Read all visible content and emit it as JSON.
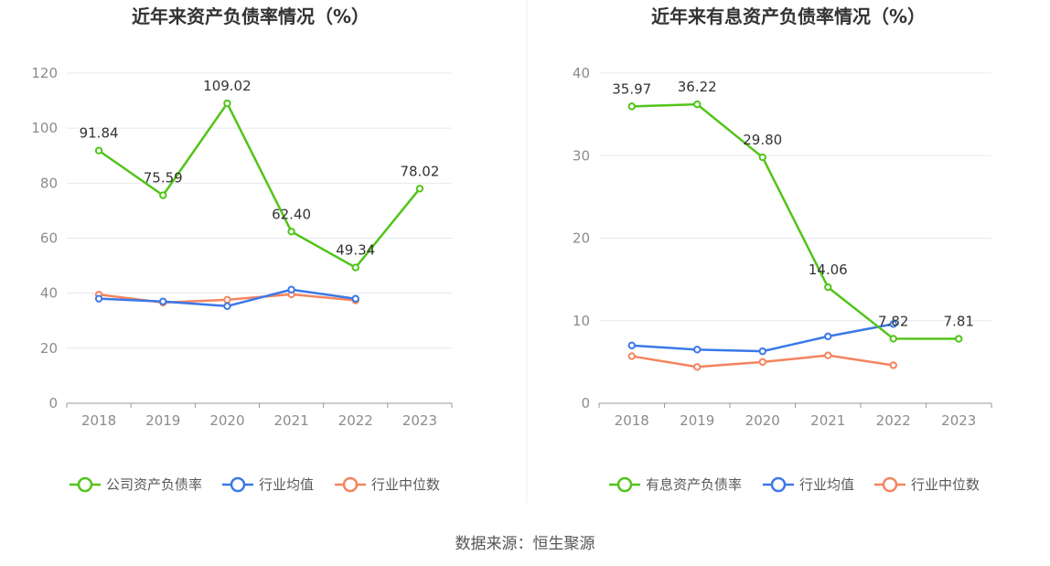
{
  "source_text": "数据来源：恒生聚源",
  "chart_data": [
    {
      "type": "line",
      "title": "近年来资产负债率情况（%）",
      "categories": [
        "2018",
        "2019",
        "2020",
        "2021",
        "2022",
        "2023"
      ],
      "y_ticks": [
        "0",
        "20",
        "40",
        "60",
        "80",
        "100",
        "120"
      ],
      "ylim": [
        0,
        120
      ],
      "grid": true,
      "legend_position": "bottom",
      "series": [
        {
          "name": "公司资产负债率",
          "color": "#52c41a",
          "values": [
            91.84,
            75.59,
            109.02,
            62.4,
            49.34,
            78.02
          ],
          "labels": [
            "91.84",
            "75.59",
            "109.02",
            "62.40",
            "49.34",
            "78.02"
          ]
        },
        {
          "name": "行业均值",
          "color": "#3b78e7",
          "values": [
            38.0,
            37.0,
            35.3,
            41.3,
            38.0,
            null
          ]
        },
        {
          "name": "行业中位数",
          "color": "#f4845f",
          "values": [
            39.5,
            36.6,
            37.6,
            39.6,
            37.4,
            null
          ]
        }
      ]
    },
    {
      "type": "line",
      "title": "近年来有息资产负债率情况（%）",
      "categories": [
        "2018",
        "2019",
        "2020",
        "2021",
        "2022",
        "2023"
      ],
      "y_ticks": [
        "0",
        "10",
        "20",
        "30",
        "40"
      ],
      "ylim": [
        0,
        40
      ],
      "grid": true,
      "legend_position": "bottom",
      "series": [
        {
          "name": "有息资产负债率",
          "color": "#52c41a",
          "values": [
            35.97,
            36.22,
            29.8,
            14.06,
            7.82,
            7.81
          ],
          "labels": [
            "35.97",
            "36.22",
            "29.80",
            "14.06",
            "7.82",
            "7.81"
          ]
        },
        {
          "name": "行业均值",
          "color": "#3b78e7",
          "values": [
            7.0,
            6.5,
            6.3,
            8.1,
            9.6,
            null
          ]
        },
        {
          "name": "行业中位数",
          "color": "#f4845f",
          "values": [
            5.7,
            4.4,
            5.0,
            5.8,
            4.6,
            null
          ]
        }
      ]
    }
  ]
}
